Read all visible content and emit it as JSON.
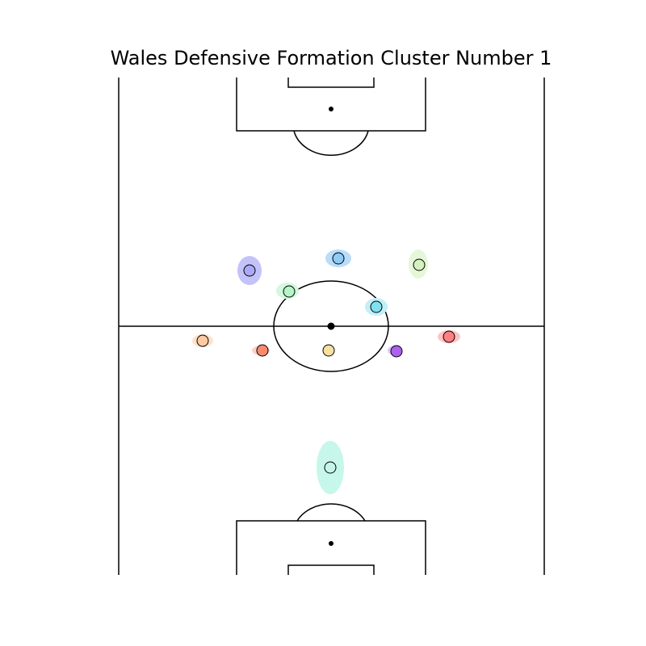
{
  "title": "Wales Defensive Formation Cluster Number 1",
  "colors": {
    "line": "#000000",
    "background": "#ffffff"
  },
  "players": [
    {
      "name": "gk",
      "color": "#bff5e8",
      "fill": "#c5f5e9"
    },
    {
      "name": "p1",
      "color": "#ffd2b0",
      "fill": "#ffc9a3"
    },
    {
      "name": "p2",
      "color": "#ffc0b0",
      "fill": "#f98a70"
    },
    {
      "name": "p3",
      "color": "#f7e5b0",
      "fill": "#f5e1a0"
    },
    {
      "name": "p4",
      "color": "#b9b9ff",
      "fill": "#b195f5"
    },
    {
      "name": "p5",
      "color": "#ffc4c4",
      "fill": "#ff8383"
    },
    {
      "name": "p6",
      "color": "#bffad2",
      "fill": "#b5f5c8"
    },
    {
      "name": "p7",
      "color": "#b0eaff",
      "fill": "#8ae4f5"
    },
    {
      "name": "p8",
      "color": "#bbbbfa",
      "fill": "#a9a9f7"
    },
    {
      "name": "p9",
      "color": "#b4d8ff",
      "fill": "#8ecbf5"
    },
    {
      "name": "p10",
      "color": "#e1f8cc",
      "fill": "#d5f1c0"
    }
  ]
}
